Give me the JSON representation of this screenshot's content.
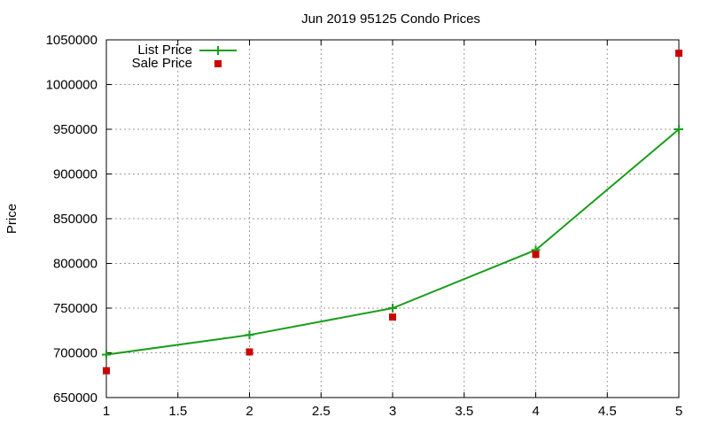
{
  "chart_data": {
    "type": "line",
    "title": "Jun 2019 95125 Condo Prices",
    "xlabel": "",
    "ylabel": "Price",
    "xlim": [
      1,
      5
    ],
    "ylim": [
      650000,
      1050000
    ],
    "xticks": [
      "1",
      "1.5",
      "2",
      "2.5",
      "3",
      "3.5",
      "4",
      "4.5",
      "5"
    ],
    "yticks": [
      "650000",
      "700000",
      "750000",
      "800000",
      "850000",
      "900000",
      "950000",
      "1000000",
      "1050000"
    ],
    "grid": true,
    "legend_position": "top-left",
    "series": [
      {
        "name": "List Price",
        "style": "line-with-plus-markers",
        "color": "#1a9e1a",
        "x": [
          1,
          2,
          3,
          4,
          5
        ],
        "values": [
          698000,
          720000,
          750000,
          815000,
          950000
        ]
      },
      {
        "name": "Sale Price",
        "style": "square-points",
        "color": "#cc0000",
        "x": [
          1,
          2,
          3,
          4,
          5
        ],
        "values": [
          680000,
          701000,
          740000,
          810000,
          1035000
        ]
      }
    ]
  }
}
